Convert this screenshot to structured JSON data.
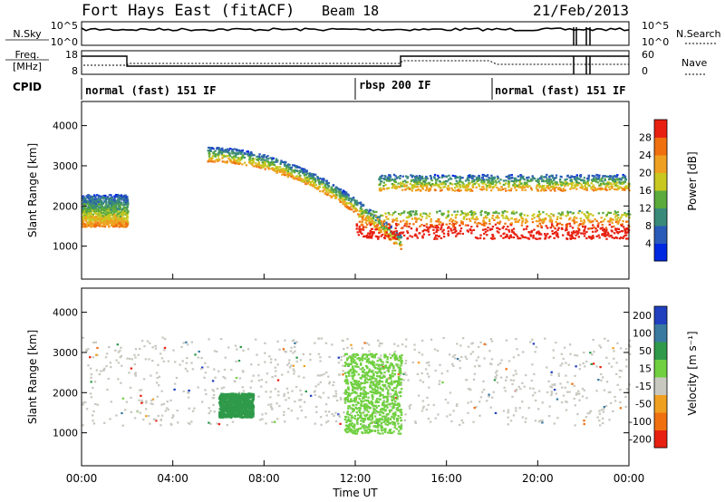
{
  "header": {
    "title": "Fort Hays East (fitACF)",
    "beam": "Beam 18",
    "date": "21/Feb/2013"
  },
  "nsky_panel": {
    "left_label": "N.Sky",
    "left_ticks": [
      "10^5",
      "10^0"
    ],
    "right_label": "N.Search",
    "right_ticks": [
      "10^5",
      "10^0"
    ]
  },
  "freq_panel": {
    "left_label_1": "Freq.",
    "left_label_2": "[MHz]",
    "left_ticks": [
      "18",
      "8"
    ],
    "right_label": "Nave",
    "right_ticks": [
      "60",
      "0"
    ]
  },
  "cpid": {
    "label": "CPID",
    "modes": [
      {
        "name": "normal (fast) 151 IF",
        "start_hour": 0
      },
      {
        "name": "rbsp 200 IF",
        "start_hour": 12
      },
      {
        "name": "normal (fast) 151 IF",
        "start_hour": 18
      }
    ]
  },
  "time_axis": {
    "label": "Time UT",
    "range_hours": [
      0,
      24
    ],
    "ticks": [
      "00:00",
      "04:00",
      "08:00",
      "12:00",
      "16:00",
      "20:00",
      "00:00"
    ]
  },
  "chart_data": [
    {
      "type": "heatmap",
      "ylabel": "Slant Range [km]",
      "ylim": [
        180,
        4600
      ],
      "yticks": [
        "1000",
        "2000",
        "3000",
        "4000"
      ],
      "colorbar": {
        "label": "Power [dB]",
        "ticks": [
          "4",
          "8",
          "12",
          "16",
          "20",
          "24",
          "28"
        ],
        "colors": [
          "#0028e0",
          "#2a5ab8",
          "#3a8a7a",
          "#5aaa3c",
          "#c8c820",
          "#f0a020",
          "#f07010",
          "#e82010"
        ]
      },
      "features": [
        {
          "band": "dense echoes",
          "time_hours": [
            0,
            2
          ],
          "range_km": [
            1500,
            2300
          ],
          "power_db": [
            12,
            28
          ]
        },
        {
          "band": "descending arc",
          "time_hours": [
            5.5,
            14
          ],
          "range_km": [
            900,
            3600
          ],
          "power_db": [
            4,
            24
          ]
        },
        {
          "band": "strong ground scatter",
          "time_hours": [
            12,
            24
          ],
          "range_km": [
            1200,
            1900
          ],
          "power_db": [
            16,
            30
          ]
        },
        {
          "band": "upper band",
          "time_hours": [
            13,
            24
          ],
          "range_km": [
            2400,
            2800
          ],
          "power_db": [
            4,
            16
          ]
        }
      ]
    },
    {
      "type": "heatmap",
      "ylabel": "Slant Range [km]",
      "ylim": [
        180,
        4600
      ],
      "yticks": [
        "1000",
        "2000",
        "3000",
        "4000"
      ],
      "colorbar": {
        "label": "Velocity [m s⁻¹]",
        "ticks": [
          "200",
          "100",
          "50",
          "15",
          "-15",
          "-50",
          "-100",
          "-200"
        ],
        "colors": [
          "#2040c0",
          "#3a7aa0",
          "#2f9a4a",
          "#70d040",
          "#c8c8c0",
          "#f0a020",
          "#f07010",
          "#e82010"
        ]
      },
      "features": [
        {
          "band": "ground scatter",
          "time_hours": [
            0,
            24
          ],
          "range_km": [
            1200,
            3400
          ],
          "velocity_ms": [
            -15,
            15
          ]
        },
        {
          "band": "positive flow",
          "time_hours": [
            11.5,
            14
          ],
          "range_km": [
            1000,
            3000
          ],
          "velocity_ms": [
            15,
            50
          ]
        },
        {
          "band": "positive flow",
          "time_hours": [
            6,
            7.5
          ],
          "range_km": [
            1400,
            2000
          ],
          "velocity_ms": [
            50,
            100
          ]
        }
      ]
    }
  ]
}
